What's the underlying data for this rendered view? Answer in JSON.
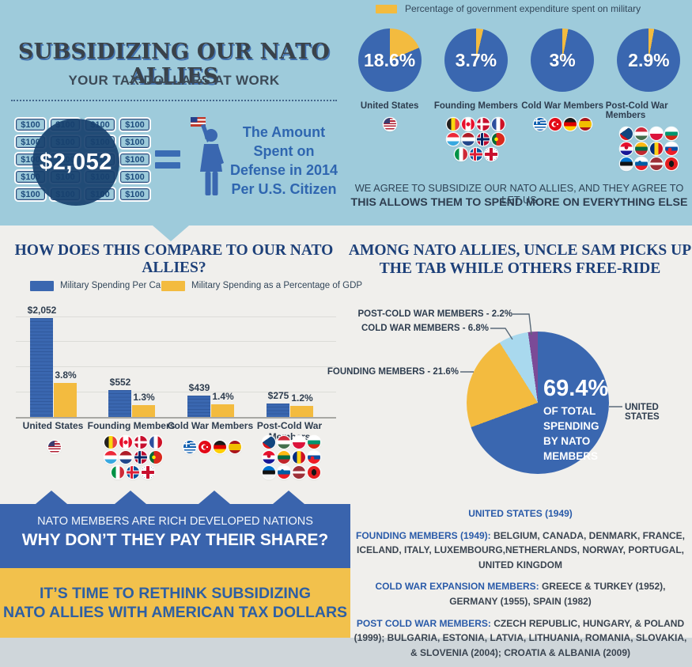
{
  "colors": {
    "bg_top": "#9ecbdb",
    "bg_bottom": "#f0efec",
    "blue": "#3a67b0",
    "yellow": "#f3bb3f",
    "light_blue_slice": "#a9d9ee",
    "purple_slice": "#7b4b97",
    "navy_circle": "#17406e",
    "heading_blue": "#1d4079",
    "dark_text": "#2e3d4f",
    "banner_blue": "#3a64ad",
    "banner_yellow": "#f2c14c"
  },
  "header": {
    "title": "SUBSIDIZING OUR NATO ALLIES",
    "subtitle": "YOUR TAX DOLLARS AT WORK"
  },
  "money": {
    "bill": "$100",
    "total": "$2,052",
    "caption": "The Amount Spent on Defense in 2014 Per U.S. Citizen"
  },
  "expenditure": {
    "legend": "Percentage of government expenditure spent on military",
    "groups": [
      {
        "label": "United States",
        "display": "18.6%",
        "pct": 18.6,
        "flags": [
          "us"
        ]
      },
      {
        "label": "Founding Members",
        "display": "3.7%",
        "pct": 3.7,
        "flags": [
          "be",
          "ca",
          "dk",
          "fr",
          "lu",
          "nl",
          "no",
          "pt",
          "it",
          "is",
          "gb"
        ]
      },
      {
        "label": "Cold War Members",
        "display": "3%",
        "pct": 3.0,
        "flags": [
          "gr",
          "tr",
          "de",
          "es"
        ]
      },
      {
        "label": "Post-Cold War Members",
        "display": "2.9%",
        "pct": 2.9,
        "flags": [
          "cz",
          "hu",
          "pl",
          "bg",
          "hr",
          "lt",
          "ro",
          "sk",
          "ee",
          "si",
          "lv",
          "al"
        ]
      }
    ],
    "tagline1": "WE AGREE TO SUBSIDIZE OUR NATO ALLIES, AND THEY AGREE TO LET US",
    "tagline2": "THIS ALLOWS THEM TO SPEND MORE ON EVERYTHING ELSE"
  },
  "comparison": {
    "heading": "HOW DOES THIS COMPARE TO OUR NATO ALLIES?",
    "legend1": "Military Spending Per Capita",
    "legend2": "Military Spending as a Percentage of GDP"
  },
  "share": {
    "heading1": "AMONG NATO ALLIES, UNCLE SAM PICKS UP",
    "heading2": "THE TAB WHILE OTHERS FREE-RIDE",
    "center_value": "69.4%",
    "center_caption": "OF TOTAL\nSPENDING\nBY NATO\nMEMBERS",
    "labels": {
      "post": "POST-COLD WAR MEMBERS - 2.2%",
      "cold": "COLD WAR MEMBERS - 6.8%",
      "founding": "FOUNDING MEMBERS - 21.6%",
      "us": "UNITED STATES"
    }
  },
  "banners": {
    "blue_line1": "NATO MEMBERS ARE RICH DEVELOPED NATIONS",
    "blue_line2": "WHY DON’T THEY PAY THEIR SHARE?",
    "yellow_line1": "IT’S TIME TO RETHINK SUBSIDIZING",
    "yellow_line2": "NATO ALLIES WITH AMERICAN TAX DOLLARS"
  },
  "membership": {
    "us": "UNITED STATES (1949)",
    "founding_label": "FOUNDING MEMBERS (1949):",
    "founding_text": " BELGIUM, CANADA, DENMARK, FRANCE, ICELAND, ITALY, LUXEMBOURG,NETHERLANDS, NORWAY, PORTUGAL, UNITED KINGDOM",
    "coldwar_label": "COLD WAR EXPANSION MEMBERS:",
    "coldwar_text": " GREECE & TURKEY (1952), GERMANY (1955), SPAIN (1982)",
    "postcold_label": "POST COLD WAR MEMBERS:",
    "postcold_text": " CZECH REPUBLIC, HUNGARY, & POLAND (1999); BULGARIA, ESTONIA, LATVIA, LITHUANIA, ROMANIA, SLOVAKIA, & SLOVENIA (2004); CROATIA & ALBANIA (2009)"
  },
  "chart_data": [
    {
      "type": "pie",
      "title": "Percentage of government expenditure spent on military",
      "items": [
        {
          "label": "United States",
          "value": 18.6
        },
        {
          "label": "Founding Members",
          "value": 3.7
        },
        {
          "label": "Cold War Members",
          "value": 3.0
        },
        {
          "label": "Post-Cold War Members",
          "value": 2.9
        }
      ],
      "unit": "percent of government expenditure"
    },
    {
      "type": "bar",
      "title": "HOW DOES THIS COMPARE TO OUR NATO ALLIES?",
      "categories": [
        "United States",
        "Founding Members",
        "Cold War Members",
        "Post-Cold War Members"
      ],
      "series": [
        {
          "name": "Military Spending Per Capita",
          "values": [
            2052,
            552,
            439,
            275
          ],
          "labels": [
            "$2,052",
            "$552",
            "$439",
            "$275"
          ],
          "color": "#3a67b0",
          "axis_max": 2052
        },
        {
          "name": "Military Spending as a Percentage of GDP",
          "values": [
            3.8,
            1.3,
            1.4,
            1.2
          ],
          "labels": [
            "3.8%",
            "1.3%",
            "1.4%",
            "1.2%"
          ],
          "color": "#f3bb3f",
          "axis_max": 11.2
        }
      ],
      "grid": true,
      "legend_position": "top"
    },
    {
      "type": "pie",
      "title": "AMONG NATO ALLIES, UNCLE SAM PICKS UP THE TAB WHILE OTHERS FREE-RIDE",
      "slices": [
        {
          "label": "UNITED STATES",
          "value": 69.4,
          "color": "#3a67b0"
        },
        {
          "label": "FOUNDING MEMBERS",
          "value": 21.6,
          "color": "#f3bb3f"
        },
        {
          "label": "COLD WAR MEMBERS",
          "value": 6.8,
          "color": "#a9d9ee"
        },
        {
          "label": "POST-COLD WAR MEMBERS",
          "value": 2.2,
          "color": "#7b4b97"
        }
      ]
    }
  ]
}
